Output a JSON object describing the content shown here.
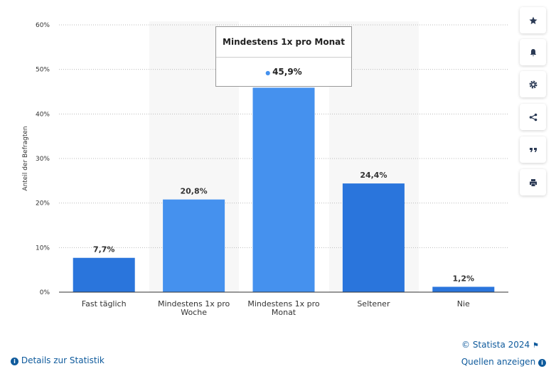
{
  "chart_data": {
    "type": "bar",
    "y_axis_label": "Anteil der Befragten",
    "categories": [
      "Fast täglich",
      "Mindestens 1x pro Woche",
      "Mindestens 1x pro Monat",
      "Seltener",
      "Nie"
    ],
    "values": [
      7.7,
      20.8,
      45.9,
      24.4,
      1.2
    ],
    "value_labels": [
      "7,7%",
      "20,8%",
      "45,9%",
      "24,4%",
      "1,2%"
    ],
    "colors": [
      "#2a75dc",
      "#4591ee",
      "#4591ee",
      "#2a75dc",
      "#2a75dc"
    ],
    "ylim": [
      0,
      60
    ],
    "yticks": [
      {
        "value": 0,
        "label": "0%"
      },
      {
        "value": 10,
        "label": "10%"
      },
      {
        "value": 20,
        "label": "20%"
      },
      {
        "value": 30,
        "label": "30%"
      },
      {
        "value": 40,
        "label": "40%"
      },
      {
        "value": 50,
        "label": "50%"
      },
      {
        "value": 60,
        "label": "60%"
      }
    ],
    "grid": true
  },
  "footer": {
    "copyright": "© Statista 2024",
    "details": "Details zur Statistik",
    "sources": "Quellen anzeigen"
  }
}
